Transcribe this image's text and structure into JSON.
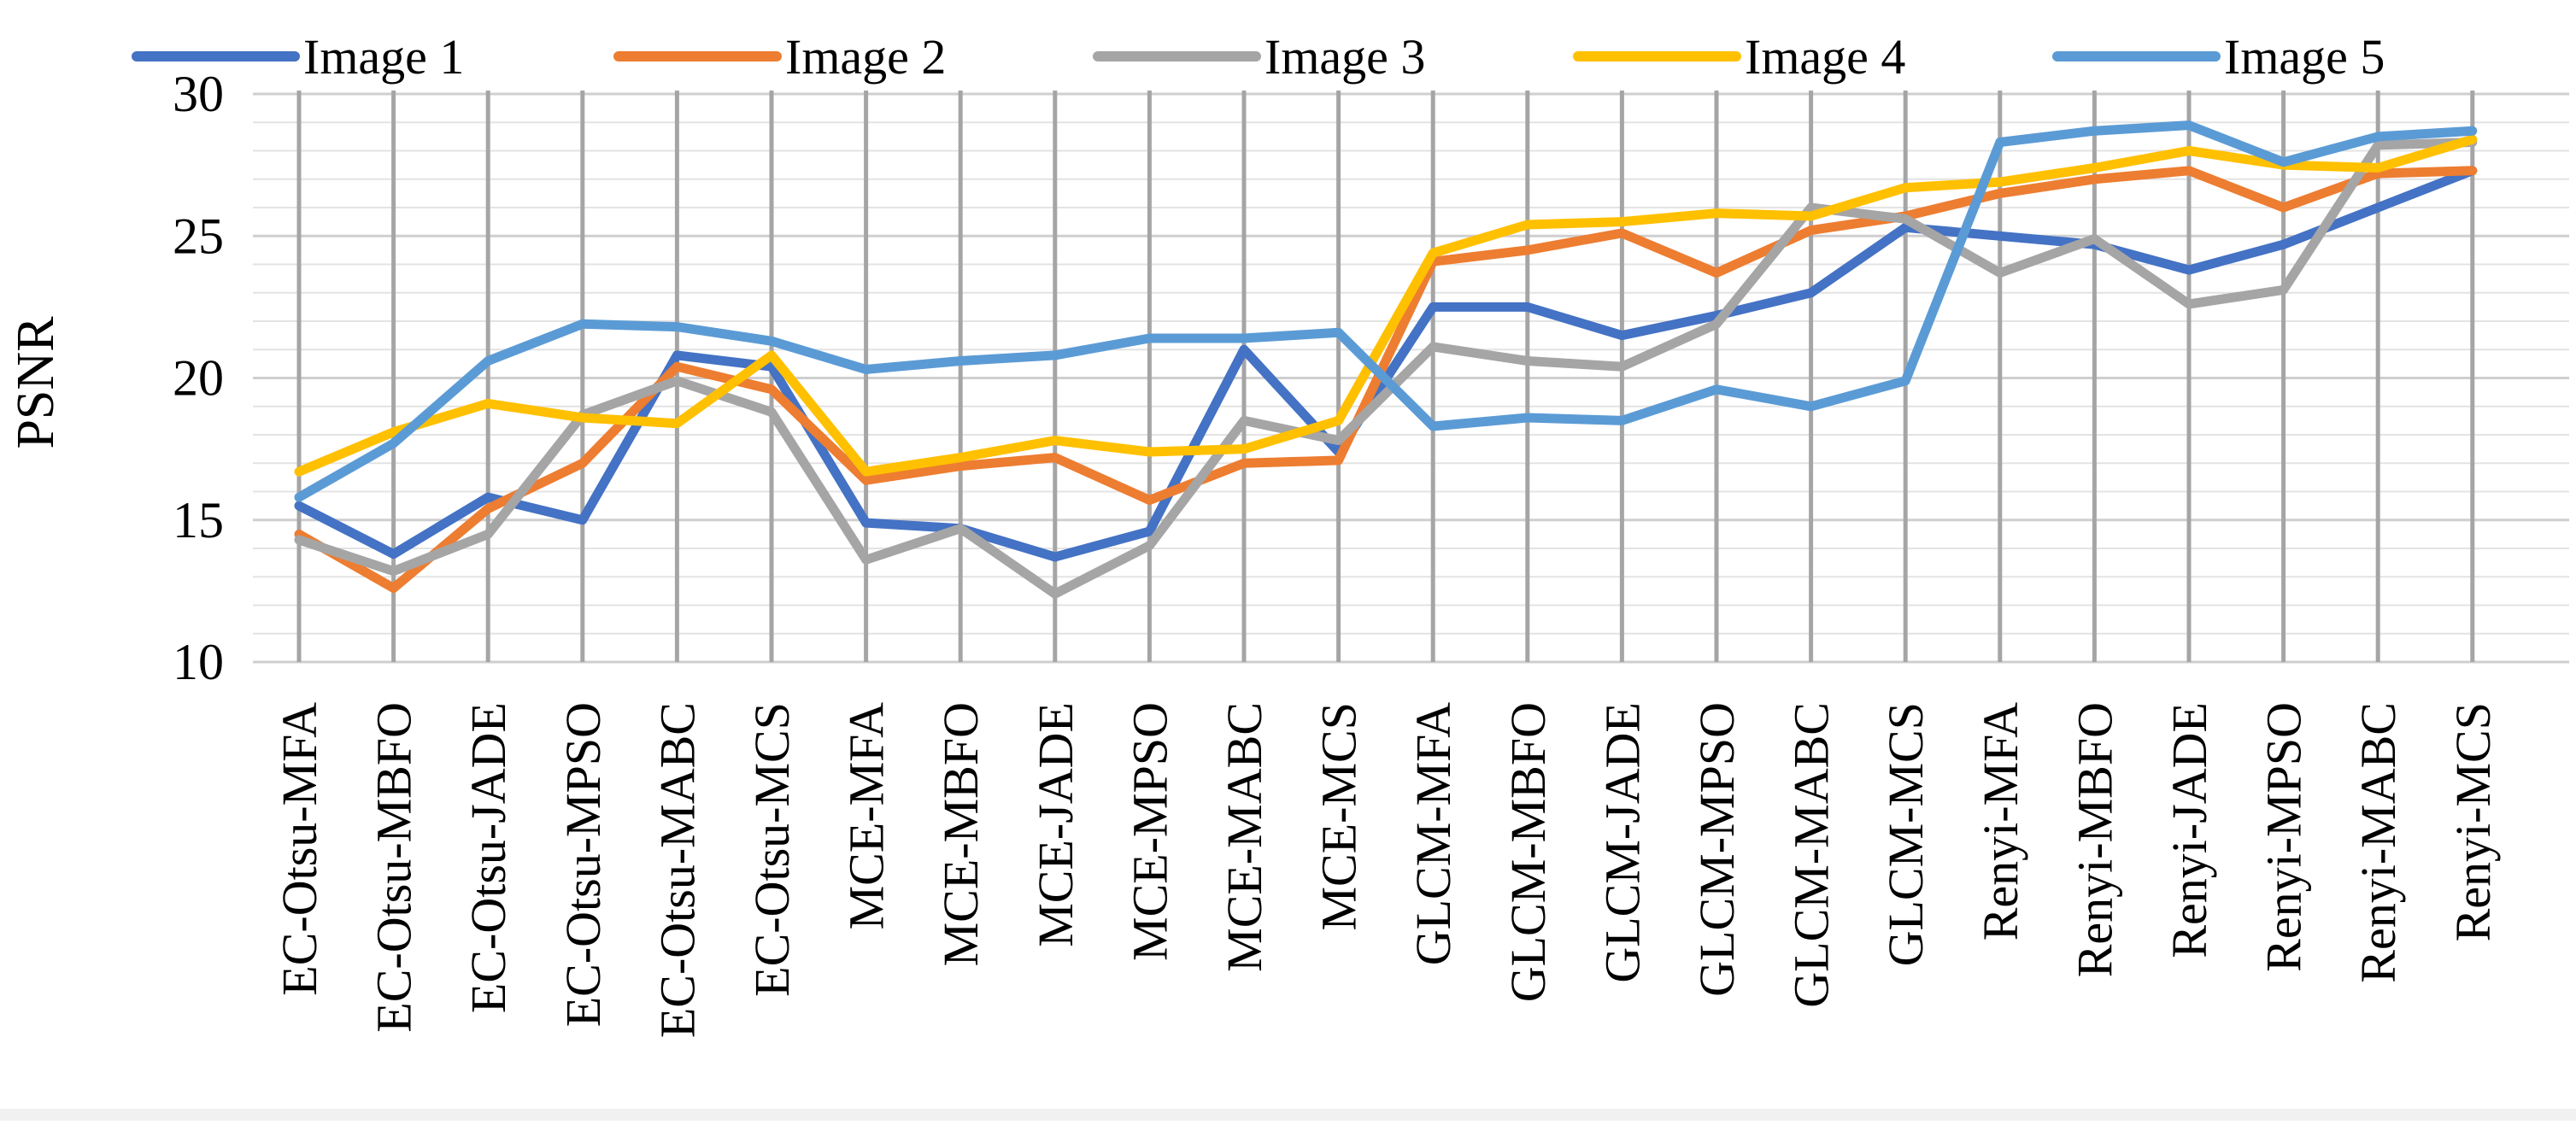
{
  "chart_data": {
    "type": "line",
    "title": "",
    "xlabel": "",
    "ylabel": "PSNR",
    "ylim": [
      10,
      30
    ],
    "yticks": [
      "10",
      "15",
      "20",
      "25",
      "30"
    ],
    "grid": true,
    "legend_position": "top",
    "categories": [
      "EC-Otsu-MFA",
      "EC-Otsu-MBFO",
      "EC-Otsu-JADE",
      "EC-Otsu-MPSO",
      "EC-Otsu-MABC",
      "EC-Otsu-MCS",
      "MCE-MFA",
      "MCE-MBFO",
      "MCE-JADE",
      "MCE-MPSO",
      "MCE-MABC",
      "MCE-MCS",
      "GLCM-MFA",
      "GLCM-MBFO",
      "GLCM-JADE",
      "GLCM-MPSO",
      "GLCM-MABC",
      "GLCM-MCS",
      "Renyi-MFA",
      "Renyi-MBFO",
      "Renyi-JADE",
      "Renyi-MPSO",
      "Renyi-MABC",
      "Renyi-MCS"
    ],
    "series": [
      {
        "name": "Image 1",
        "color": "#4472C4",
        "values": [
          15.5,
          13.8,
          15.8,
          15.0,
          20.8,
          20.4,
          14.9,
          14.7,
          13.7,
          14.6,
          21.0,
          17.4,
          22.5,
          22.5,
          21.5,
          22.2,
          23.0,
          25.3,
          25.0,
          24.7,
          23.8,
          24.7,
          26.0,
          27.3
        ]
      },
      {
        "name": "Image 2",
        "color": "#ED7D31",
        "values": [
          14.5,
          12.6,
          15.4,
          17.0,
          20.4,
          19.6,
          16.4,
          16.9,
          17.2,
          15.7,
          17.0,
          17.1,
          24.1,
          24.5,
          25.1,
          23.7,
          25.2,
          25.7,
          26.5,
          27.0,
          27.3,
          26.0,
          27.2,
          27.3
        ]
      },
      {
        "name": "Image 3",
        "color": "#A5A5A5",
        "values": [
          14.3,
          13.2,
          14.5,
          18.7,
          19.9,
          18.8,
          13.6,
          14.7,
          12.4,
          14.1,
          18.5,
          17.8,
          21.1,
          20.6,
          20.4,
          21.9,
          26.0,
          25.6,
          23.7,
          24.9,
          22.6,
          23.1,
          28.2,
          28.3
        ]
      },
      {
        "name": "Image 4",
        "color": "#FFC000",
        "values": [
          16.7,
          18.1,
          19.1,
          18.6,
          18.4,
          20.8,
          16.7,
          17.2,
          17.8,
          17.4,
          17.5,
          18.5,
          24.4,
          25.4,
          25.5,
          25.8,
          25.7,
          26.7,
          26.9,
          27.4,
          28.0,
          27.5,
          27.4,
          28.4
        ]
      },
      {
        "name": "Image 5",
        "color": "#5B9BD5",
        "values": [
          15.8,
          17.7,
          20.6,
          21.9,
          21.8,
          21.3,
          20.3,
          20.6,
          20.8,
          21.4,
          21.4,
          21.6,
          18.3,
          18.6,
          18.5,
          19.6,
          19.0,
          19.9,
          28.3,
          28.7,
          28.9,
          27.6,
          28.5,
          28.7
        ]
      }
    ]
  }
}
